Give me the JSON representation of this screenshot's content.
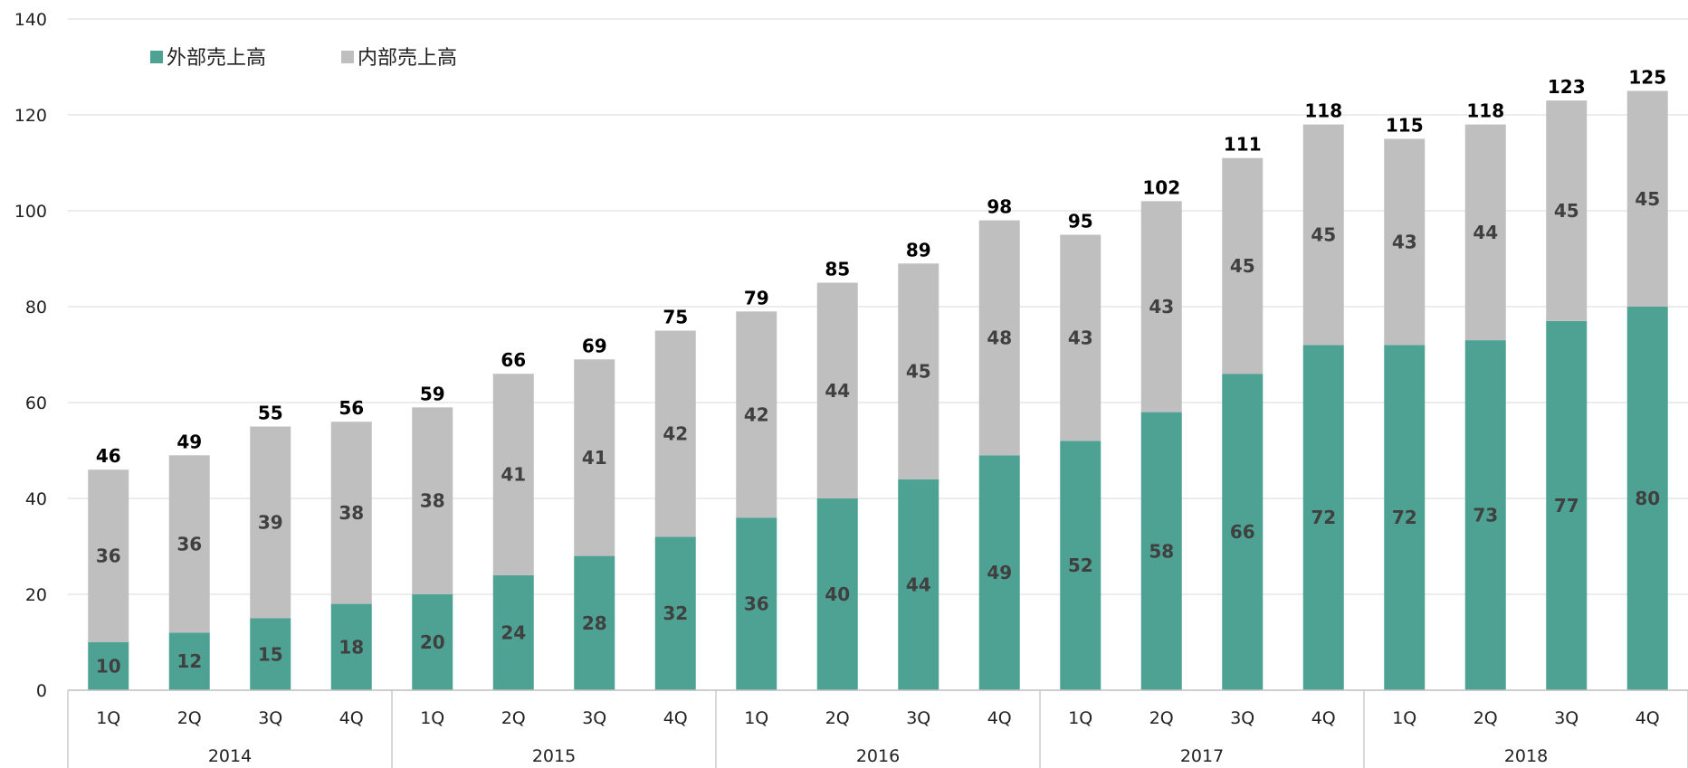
{
  "chart_data": {
    "type": "bar",
    "stacked": true,
    "years": [
      "2014",
      "2015",
      "2016",
      "2017",
      "2018"
    ],
    "quarters": [
      "1Q",
      "2Q",
      "3Q",
      "4Q"
    ],
    "categories": [
      "1Q",
      "2Q",
      "3Q",
      "4Q",
      "1Q",
      "2Q",
      "3Q",
      "4Q",
      "1Q",
      "2Q",
      "3Q",
      "4Q",
      "1Q",
      "2Q",
      "3Q",
      "4Q",
      "1Q",
      "2Q",
      "3Q",
      "4Q"
    ],
    "series": [
      {
        "name": "外部売上高",
        "color": "#4da293",
        "values": [
          10,
          12,
          15,
          18,
          20,
          24,
          28,
          32,
          36,
          40,
          44,
          49,
          52,
          58,
          66,
          72,
          72,
          73,
          77,
          80
        ]
      },
      {
        "name": "内部売上高",
        "color": "#bfbfbf",
        "values": [
          36,
          36,
          39,
          38,
          38,
          41,
          41,
          42,
          42,
          44,
          45,
          48,
          43,
          43,
          45,
          45,
          43,
          44,
          45,
          45
        ]
      }
    ],
    "totals": [
      46,
      49,
      55,
      56,
      59,
      66,
      69,
      75,
      79,
      85,
      89,
      98,
      95,
      102,
      111,
      118,
      115,
      118,
      123,
      125
    ],
    "ylim": [
      0,
      140
    ],
    "yticks": [
      "0",
      "20",
      "40",
      "60",
      "80",
      "100",
      "120",
      "140"
    ],
    "grid": true,
    "legend_position": "top-left",
    "xlabel": "",
    "ylabel": ""
  }
}
